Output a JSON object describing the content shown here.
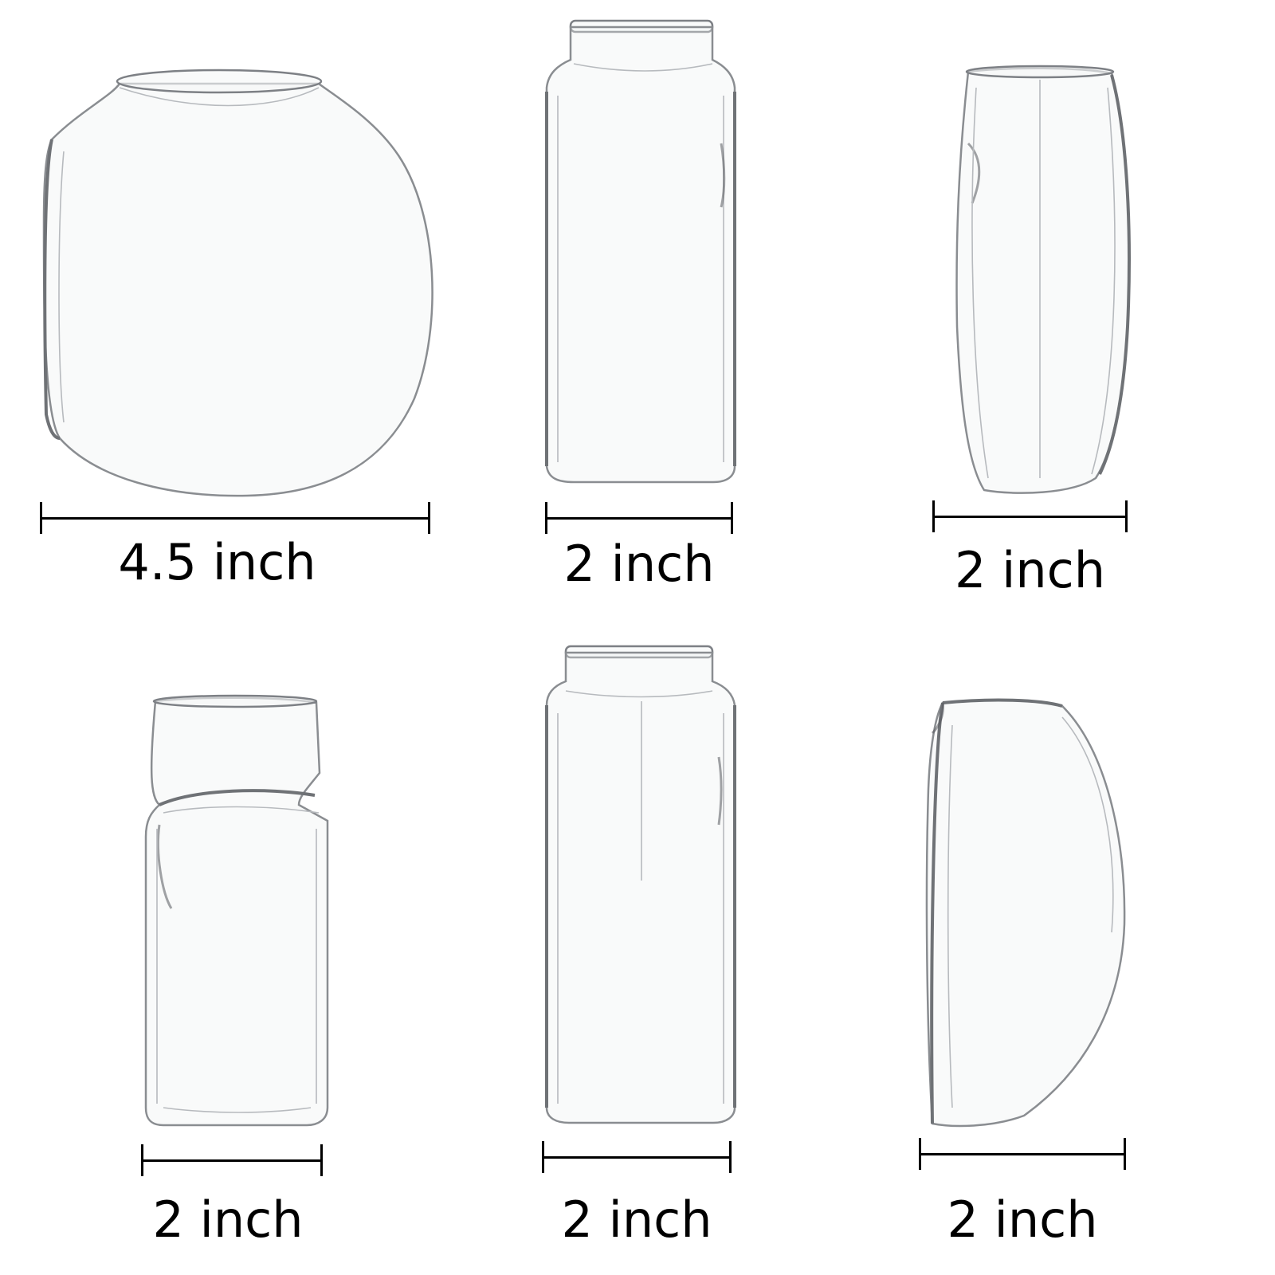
{
  "vases": [
    {
      "shape": "round-bowl",
      "width_label": "4.5 inch"
    },
    {
      "shape": "square-tall",
      "width_label": "2 inch"
    },
    {
      "shape": "oval-dented",
      "width_label": "2 inch"
    },
    {
      "shape": "square-pinched",
      "width_label": "2 inch"
    },
    {
      "shape": "square-tall",
      "width_label": "2 inch"
    },
    {
      "shape": "half-moon",
      "width_label": "2 inch"
    }
  ]
}
